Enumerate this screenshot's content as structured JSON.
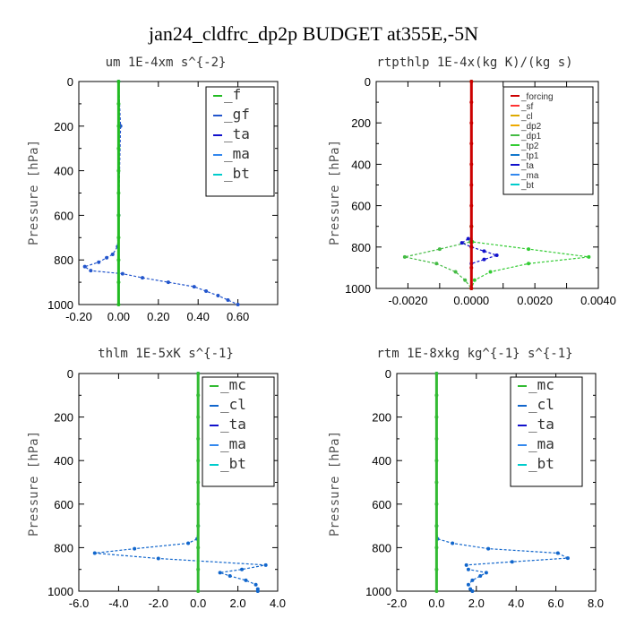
{
  "title": "jan24_cldfrc_dp2p  BUDGET at355E,-5N",
  "colors": {
    "f": "#22bb22",
    "gf": "#2255cc",
    "ta": "#1111cc",
    "ma": "#3388ee",
    "bt": "#00cccc",
    "forcing": "#cc0000",
    "sf": "#ff3333",
    "cl_y": "#ddaa00",
    "dp2": "#eeaa00",
    "dp1": "#44bb44",
    "tp2": "#33cc33",
    "tp1": "#1177cc",
    "mc": "#33bb33",
    "cl": "#1166cc"
  },
  "chart_data": [
    {
      "type": "line",
      "title": "um  1E-4xm s^{-2}",
      "ylabel": "Pressure [hPa]",
      "xlim": [
        -0.2,
        0.8
      ],
      "ylim": [
        1000,
        0
      ],
      "xticks": [
        "-0.20",
        "0.00",
        "0.20",
        "0.40",
        "0.60"
      ],
      "xtick_values": [
        -0.2,
        0.0,
        0.2,
        0.4,
        0.6
      ],
      "yticks": [
        "0",
        "200",
        "400",
        "600",
        "800",
        "1000"
      ],
      "grid": false,
      "legend_placement": "top-right",
      "legend": [
        {
          "label": "_f",
          "color": "#22bb22"
        },
        {
          "label": "_gf",
          "color": "#2255cc"
        },
        {
          "label": "_ta",
          "color": "#1111cc"
        },
        {
          "label": "_ma",
          "color": "#3388ee"
        },
        {
          "label": "_bt",
          "color": "#00cccc"
        }
      ],
      "series": [
        {
          "color": "#2255cc",
          "p": [
            0,
            200,
            600,
            740,
            775,
            790,
            810,
            830,
            848,
            862,
            880,
            900,
            920,
            940,
            960,
            980,
            1000
          ],
          "x": [
            0,
            0.01,
            0,
            -0.005,
            -0.03,
            -0.06,
            -0.1,
            -0.17,
            -0.14,
            0.02,
            0.12,
            0.25,
            0.38,
            0.44,
            0.5,
            0.55,
            0.6
          ]
        },
        {
          "color": "#22bb22",
          "p": [
            0,
            100,
            200,
            300,
            400,
            500,
            600,
            700,
            800,
            900,
            1000
          ],
          "x": [
            0,
            0,
            0,
            0,
            0,
            0,
            0,
            0,
            0,
            0,
            0
          ]
        }
      ]
    },
    {
      "type": "line",
      "title": "rtpthlp  1E-4x(kg K)/(kg s)",
      "ylabel": "Pressure [hPa]",
      "xlim": [
        -0.003,
        0.004
      ],
      "ylim": [
        1000,
        0
      ],
      "xticks": [
        "-0.0020",
        "-0.0010",
        "0.0000",
        "0.0010",
        "0.0020",
        "0.0030",
        "0.0040"
      ],
      "xtick_values": [
        -0.002,
        -0.001,
        0.0,
        0.001,
        0.002,
        0.003,
        0.004
      ],
      "xtick_shown": [
        true,
        false,
        true,
        false,
        true,
        false,
        true
      ],
      "yticks": [
        "0",
        "200",
        "400",
        "600",
        "800",
        "1000"
      ],
      "grid": false,
      "legend_placement": "top-right",
      "legend": [
        {
          "label": "_forcing",
          "color": "#cc0000"
        },
        {
          "label": "_sf",
          "color": "#ff3333"
        },
        {
          "label": "_cl",
          "color": "#ddaa00"
        },
        {
          "label": "_dp2",
          "color": "#eeaa00"
        },
        {
          "label": "_dp1",
          "color": "#44bb44"
        },
        {
          "label": "_tp2",
          "color": "#33cc33"
        },
        {
          "label": "_tp1",
          "color": "#1177cc"
        },
        {
          "label": "_ta",
          "color": "#1111cc"
        },
        {
          "label": "_ma",
          "color": "#3388ee"
        },
        {
          "label": "_bt",
          "color": "#00cccc"
        }
      ],
      "series": [
        {
          "color": "#33cc33",
          "p": [
            0,
            700,
            775,
            810,
            848,
            880,
            920,
            960,
            1000
          ],
          "x": [
            0,
            0,
            3e-05,
            0.0018,
            0.0037,
            0.0018,
            0.0006,
            0.0001,
            0
          ]
        },
        {
          "color": "#44bb44",
          "p": [
            0,
            700,
            775,
            810,
            848,
            880,
            920,
            960,
            1000
          ],
          "x": [
            0,
            0,
            -3e-05,
            -0.001,
            -0.0021,
            -0.0011,
            -0.0005,
            -0.0002,
            0
          ]
        },
        {
          "color": "#1111cc",
          "p": [
            760,
            780,
            800,
            820,
            840,
            860,
            880
          ],
          "x": [
            -0.0001,
            -0.0003,
            0,
            0.0004,
            0.0008,
            0.0004,
            0
          ]
        },
        {
          "color": "#cc0000",
          "p": [
            0,
            100,
            200,
            300,
            400,
            500,
            600,
            700,
            800,
            900,
            1000
          ],
          "x": [
            0,
            0,
            0,
            0,
            0,
            0,
            0,
            0,
            0,
            0,
            0
          ]
        }
      ]
    },
    {
      "type": "line",
      "title": "thlm  1E-5xK s^{-1}",
      "ylabel": "Pressure [hPa]",
      "xlim": [
        -6,
        4
      ],
      "ylim": [
        1000,
        0
      ],
      "xticks": [
        "-6.0",
        "-4.0",
        "-2.0",
        "0.0",
        "2.0",
        "4.0"
      ],
      "xtick_values": [
        -6,
        -4,
        -2,
        0,
        2,
        4
      ],
      "yticks": [
        "0",
        "200",
        "400",
        "600",
        "800",
        "1000"
      ],
      "grid": false,
      "legend_placement": "top-right",
      "legend": [
        {
          "label": "_mc",
          "color": "#33bb33"
        },
        {
          "label": "_cl",
          "color": "#1166cc"
        },
        {
          "label": "_ta",
          "color": "#1111cc"
        },
        {
          "label": "_ma",
          "color": "#3388ee"
        },
        {
          "label": "_bt",
          "color": "#00cccc"
        }
      ],
      "series": [
        {
          "color": "#1166cc",
          "p": [
            0,
            700,
            760,
            780,
            805,
            825,
            850,
            880,
            900,
            915,
            930,
            950,
            970,
            990,
            1000
          ],
          "x": [
            0,
            0,
            -0.05,
            -0.5,
            -3.2,
            -5.2,
            -2,
            3.4,
            2.2,
            1.1,
            1.6,
            2.4,
            2.9,
            3.0,
            3.0
          ]
        },
        {
          "color": "#33bb33",
          "p": [
            0,
            100,
            200,
            300,
            400,
            500,
            600,
            700,
            800,
            900,
            1000
          ],
          "x": [
            0,
            0,
            0,
            0,
            0,
            0,
            0,
            0,
            0,
            0,
            0
          ]
        }
      ]
    },
    {
      "type": "line",
      "title": "rtm  1E-8xkg kg^{-1} s^{-1}",
      "ylabel": "Pressure [hPa]",
      "xlim": [
        -2,
        8
      ],
      "ylim": [
        1000,
        0
      ],
      "xticks": [
        "-2.0",
        "0.0",
        "2.0",
        "4.0",
        "6.0",
        "8.0"
      ],
      "xtick_values": [
        -2,
        0,
        2,
        4,
        6,
        8
      ],
      "yticks": [
        "0",
        "200",
        "400",
        "600",
        "800",
        "1000"
      ],
      "grid": false,
      "legend_placement": "top-right",
      "legend": [
        {
          "label": "_mc",
          "color": "#33bb33"
        },
        {
          "label": "_cl",
          "color": "#1166cc"
        },
        {
          "label": "_ta",
          "color": "#1111cc"
        },
        {
          "label": "_ma",
          "color": "#3388ee"
        },
        {
          "label": "_bt",
          "color": "#00cccc"
        }
      ],
      "series": [
        {
          "color": "#1166cc",
          "p": [
            0,
            700,
            760,
            780,
            805,
            825,
            848,
            865,
            880,
            900,
            915,
            930,
            950,
            970,
            990,
            1000
          ],
          "x": [
            0,
            0,
            0.05,
            0.8,
            2.6,
            6.1,
            6.6,
            3.8,
            1.5,
            1.6,
            2.5,
            2.2,
            1.8,
            1.6,
            1.7,
            1.8
          ]
        },
        {
          "color": "#33bb33",
          "p": [
            0,
            100,
            200,
            300,
            400,
            500,
            600,
            700,
            800,
            900,
            1000
          ],
          "x": [
            0,
            0,
            0,
            0,
            0,
            0,
            0,
            0,
            0,
            0,
            0
          ]
        }
      ]
    }
  ]
}
